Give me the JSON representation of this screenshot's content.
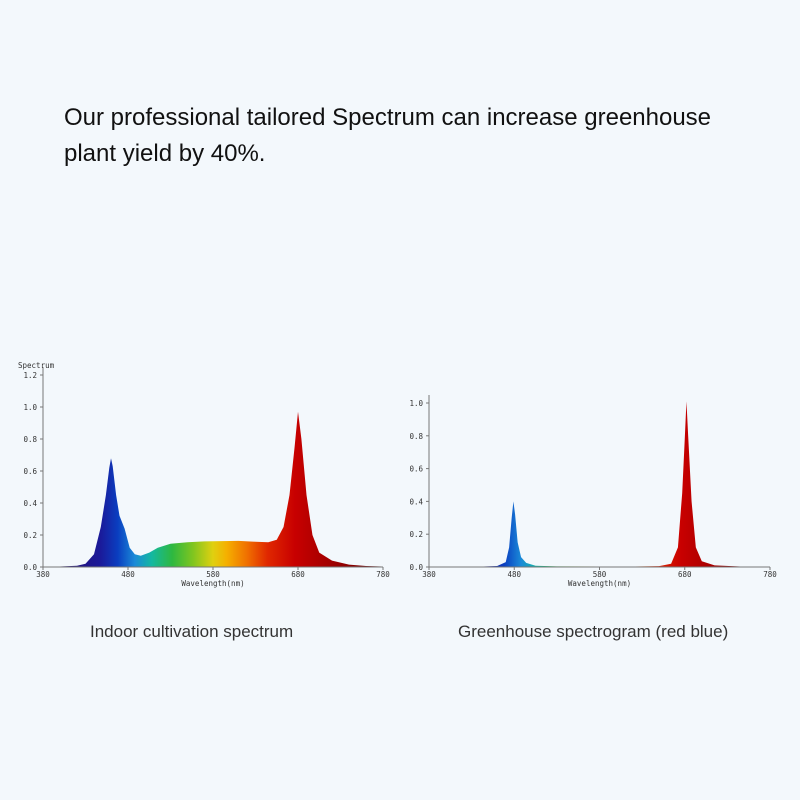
{
  "headline": "Our professional tailored Spectrum can increase greenhouse plant yield by 40%.",
  "chart_data": [
    {
      "type": "area",
      "caption": "Indoor cultivation spectrum",
      "ylabel": "Spectrum",
      "xlabel": "Wavelength(nm)",
      "xlim": [
        380,
        780
      ],
      "ylim": [
        0,
        1.2
      ],
      "xticks": [
        "380",
        "480",
        "580",
        "680",
        "780"
      ],
      "yticks": [
        "0.0",
        "0.2",
        "0.4",
        "0.6",
        "0.8",
        "1.0",
        "1.2"
      ],
      "grid": false,
      "points": [
        [
          380,
          0
        ],
        [
          400,
          0.003
        ],
        [
          420,
          0.008
        ],
        [
          430,
          0.02
        ],
        [
          440,
          0.08
        ],
        [
          448,
          0.25
        ],
        [
          454,
          0.45
        ],
        [
          458,
          0.62
        ],
        [
          460,
          0.68
        ],
        [
          462,
          0.63
        ],
        [
          466,
          0.45
        ],
        [
          470,
          0.32
        ],
        [
          476,
          0.24
        ],
        [
          482,
          0.12
        ],
        [
          488,
          0.08
        ],
        [
          495,
          0.07
        ],
        [
          505,
          0.09
        ],
        [
          515,
          0.12
        ],
        [
          530,
          0.145
        ],
        [
          550,
          0.155
        ],
        [
          570,
          0.16
        ],
        [
          590,
          0.162
        ],
        [
          610,
          0.163
        ],
        [
          630,
          0.158
        ],
        [
          645,
          0.155
        ],
        [
          655,
          0.17
        ],
        [
          663,
          0.25
        ],
        [
          670,
          0.45
        ],
        [
          676,
          0.75
        ],
        [
          680,
          0.97
        ],
        [
          684,
          0.8
        ],
        [
          690,
          0.45
        ],
        [
          697,
          0.2
        ],
        [
          705,
          0.09
        ],
        [
          720,
          0.04
        ],
        [
          740,
          0.015
        ],
        [
          760,
          0.006
        ],
        [
          780,
          0.003
        ]
      ]
    },
    {
      "type": "area",
      "caption": "Greenhouse spectrogram (red blue)",
      "xlabel": "Wavelength(nm)",
      "xlim": [
        380,
        780
      ],
      "ylim": [
        0,
        1.0
      ],
      "xticks": [
        "380",
        "480",
        "580",
        "680",
        "780"
      ],
      "yticks": [
        "0.0",
        "0.2",
        "0.4",
        "0.6",
        "0.8",
        "1.0"
      ],
      "grid": false,
      "points": [
        [
          380,
          0
        ],
        [
          440,
          0.002
        ],
        [
          460,
          0.006
        ],
        [
          470,
          0.03
        ],
        [
          474,
          0.12
        ],
        [
          477,
          0.3
        ],
        [
          479,
          0.4
        ],
        [
          481,
          0.32
        ],
        [
          484,
          0.15
        ],
        [
          488,
          0.06
        ],
        [
          494,
          0.025
        ],
        [
          505,
          0.008
        ],
        [
          530,
          0.004
        ],
        [
          580,
          0.003
        ],
        [
          620,
          0.003
        ],
        [
          650,
          0.005
        ],
        [
          664,
          0.02
        ],
        [
          672,
          0.12
        ],
        [
          677,
          0.45
        ],
        [
          680,
          0.78
        ],
        [
          682,
          1.01
        ],
        [
          684,
          0.8
        ],
        [
          688,
          0.4
        ],
        [
          693,
          0.12
        ],
        [
          700,
          0.035
        ],
        [
          715,
          0.01
        ],
        [
          745,
          0.003
        ],
        [
          780,
          0.001
        ]
      ]
    }
  ]
}
